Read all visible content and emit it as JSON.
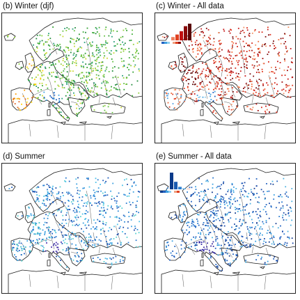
{
  "panels": [
    {
      "id": "b",
      "label": "(b)  Winter (djf)",
      "palette": "greens",
      "inset": null
    },
    {
      "id": "c",
      "label": "(c)  Winter - All data",
      "palette": "reds",
      "inset": {
        "bar_values": [
          0.2,
          0.35,
          0.55,
          0.85,
          1.0
        ],
        "bar_colors": [
          "#f08060",
          "#e04020",
          "#c01010",
          "#8a0a0a",
          "#5a0606"
        ],
        "scale_colors": [
          "#2060c0",
          "#40a0e0",
          "#90d0f0",
          "#ffffff",
          "#f0a080",
          "#e04020",
          "#8a0a0a"
        ]
      }
    },
    {
      "id": "d",
      "label": "(d)  Summer",
      "palette": "blues",
      "inset": null
    },
    {
      "id": "e",
      "label": "(e)  Summer - All data",
      "palette": "blues2",
      "inset": {
        "bar_values": [
          1.0,
          0.45,
          0.15,
          0.06,
          0.03
        ],
        "bar_colors": [
          "#0a3a8a",
          "#1a5ab0",
          "#3080d0",
          "#60b0e8",
          "#f0a080"
        ],
        "scale_colors": [
          "#0a3a8a",
          "#2060c0",
          "#40a0e0",
          "#90d0f0",
          "#ffffff",
          "#f0a080",
          "#e04020"
        ]
      }
    }
  ],
  "palettes": {
    "greens": [
      "#2e9e2e",
      "#3fae3a",
      "#64c043",
      "#8fcf3c",
      "#1f8a3a",
      "#2aa07a",
      "#c8d830"
    ],
    "reds": [
      "#c81818",
      "#a00c0c",
      "#e03a20",
      "#f06a3a",
      "#7a0808",
      "#d82818",
      "#f49060"
    ],
    "blues": [
      "#1f5fbf",
      "#2a7ad0",
      "#3aa0e0",
      "#1a4aa8",
      "#4ac0e8",
      "#2d8ad8",
      "#5ad0d0"
    ],
    "blues2": [
      "#1a4aa8",
      "#1f5fbf",
      "#2a7ad0",
      "#153c90",
      "#3aa0e0",
      "#2060c0",
      "#4ab0e0"
    ]
  },
  "region_colors": {
    "iberia": {
      "b": [
        "#ffd000",
        "#f0a020",
        "#e06020",
        "#ff9900"
      ],
      "c": [
        "#f06a3a",
        "#e03a20",
        "#f4a070",
        "#50a0e0"
      ],
      "d": [
        "#3aa0e0",
        "#40c0c0",
        "#1f5fbf"
      ],
      "e": [
        "#2a7ad0",
        "#3aa0e0",
        "#1f5fbf"
      ]
    },
    "uk": {
      "b": [
        "#ffd000",
        "#c8d830",
        "#f0a020"
      ],
      "c": [
        "#7a0808",
        "#5a0606",
        "#8a0a0a"
      ],
      "d": [
        "#40c0c0",
        "#3aa0e0"
      ],
      "e": [
        "#2a7ad0",
        "#3aa0e0"
      ]
    },
    "alps": {
      "b": [
        "#2060c0",
        "#1f5fbf",
        "#3aa0e0"
      ],
      "c": [
        "#2060c0",
        "#40a0e0",
        "#90d0f0"
      ],
      "d": [
        "#3a2aa0",
        "#4a30b0",
        "#2a20a0"
      ],
      "e": [
        "#3a2aa0",
        "#2a20a0"
      ]
    },
    "lowlands": {
      "b": [
        "#c8d830",
        "#ffd000",
        "#8fcf3c"
      ],
      "c": [
        "#5a0606",
        "#7a0808"
      ],
      "d": [
        "#3aa0e0",
        "#40c0c0"
      ],
      "e": [
        "#1f5fbf",
        "#2a7ad0"
      ]
    }
  }
}
